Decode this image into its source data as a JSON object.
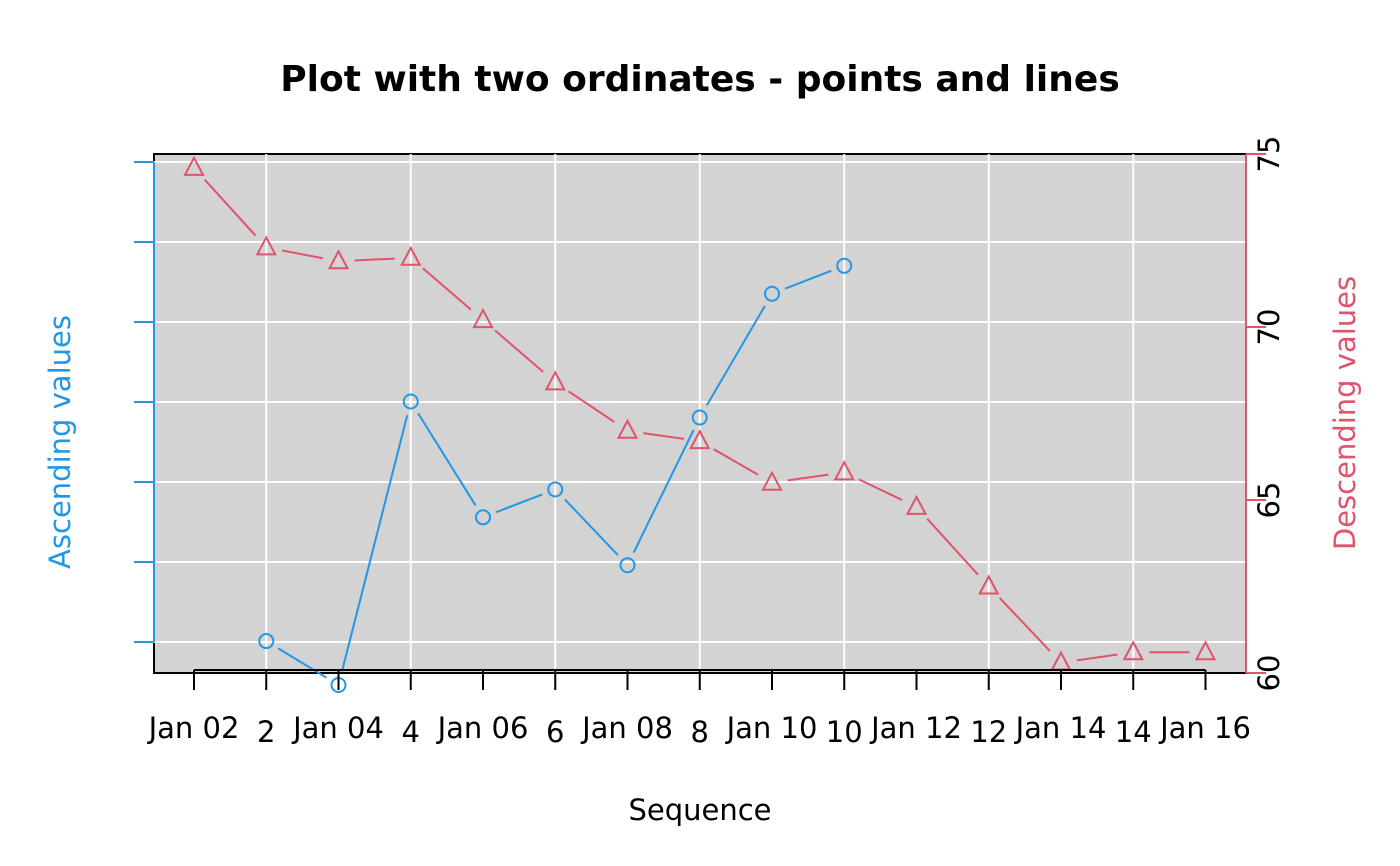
{
  "chart_data": {
    "type": "line",
    "title": "Plot with two ordinates - points and lines",
    "xlabel": "Sequence",
    "colors": {
      "ascending": "#2297E6",
      "descending": "#DF536B",
      "panel": "#D3D3D3",
      "grid": "#FFFFFF"
    },
    "x_date_ticks": [
      "Jan 02",
      "Jan 04",
      "Jan 06",
      "Jan 08",
      "Jan 10",
      "Jan 12",
      "Jan 14",
      "Jan 16"
    ],
    "x_num_ticks": [
      "2",
      "4",
      "6",
      "8",
      "10",
      "12",
      "14"
    ],
    "grid": true,
    "series": [
      {
        "axis": "left",
        "axis_label": "Ascending values",
        "marker": "circle",
        "ylim": [
          0.8,
          7.3
        ],
        "x": [
          2,
          3,
          4,
          5,
          6,
          7,
          8,
          9,
          10
        ],
        "values": [
          1.2,
          0.65,
          4.2,
          2.75,
          3.1,
          2.15,
          4.0,
          5.55,
          5.9
        ]
      },
      {
        "axis": "right",
        "axis_label": "Descending values",
        "marker": "triangle",
        "ylim": [
          60,
          75
        ],
        "tick_labels": [
          "60",
          "65",
          "70",
          "75"
        ],
        "x": [
          "Jan 02",
          "Jan 03",
          "Jan 04",
          "Jan 05",
          "Jan 06",
          "Jan 07",
          "Jan 08",
          "Jan 09",
          "Jan 10",
          "Jan 11",
          "Jan 12",
          "Jan 13",
          "Jan 14",
          "Jan 15",
          "Jan 16"
        ],
        "values": [
          74.6,
          72.3,
          71.9,
          72.0,
          70.2,
          68.4,
          67.0,
          66.7,
          65.5,
          65.8,
          64.8,
          62.5,
          60.3,
          60.6,
          60.6
        ]
      }
    ]
  }
}
